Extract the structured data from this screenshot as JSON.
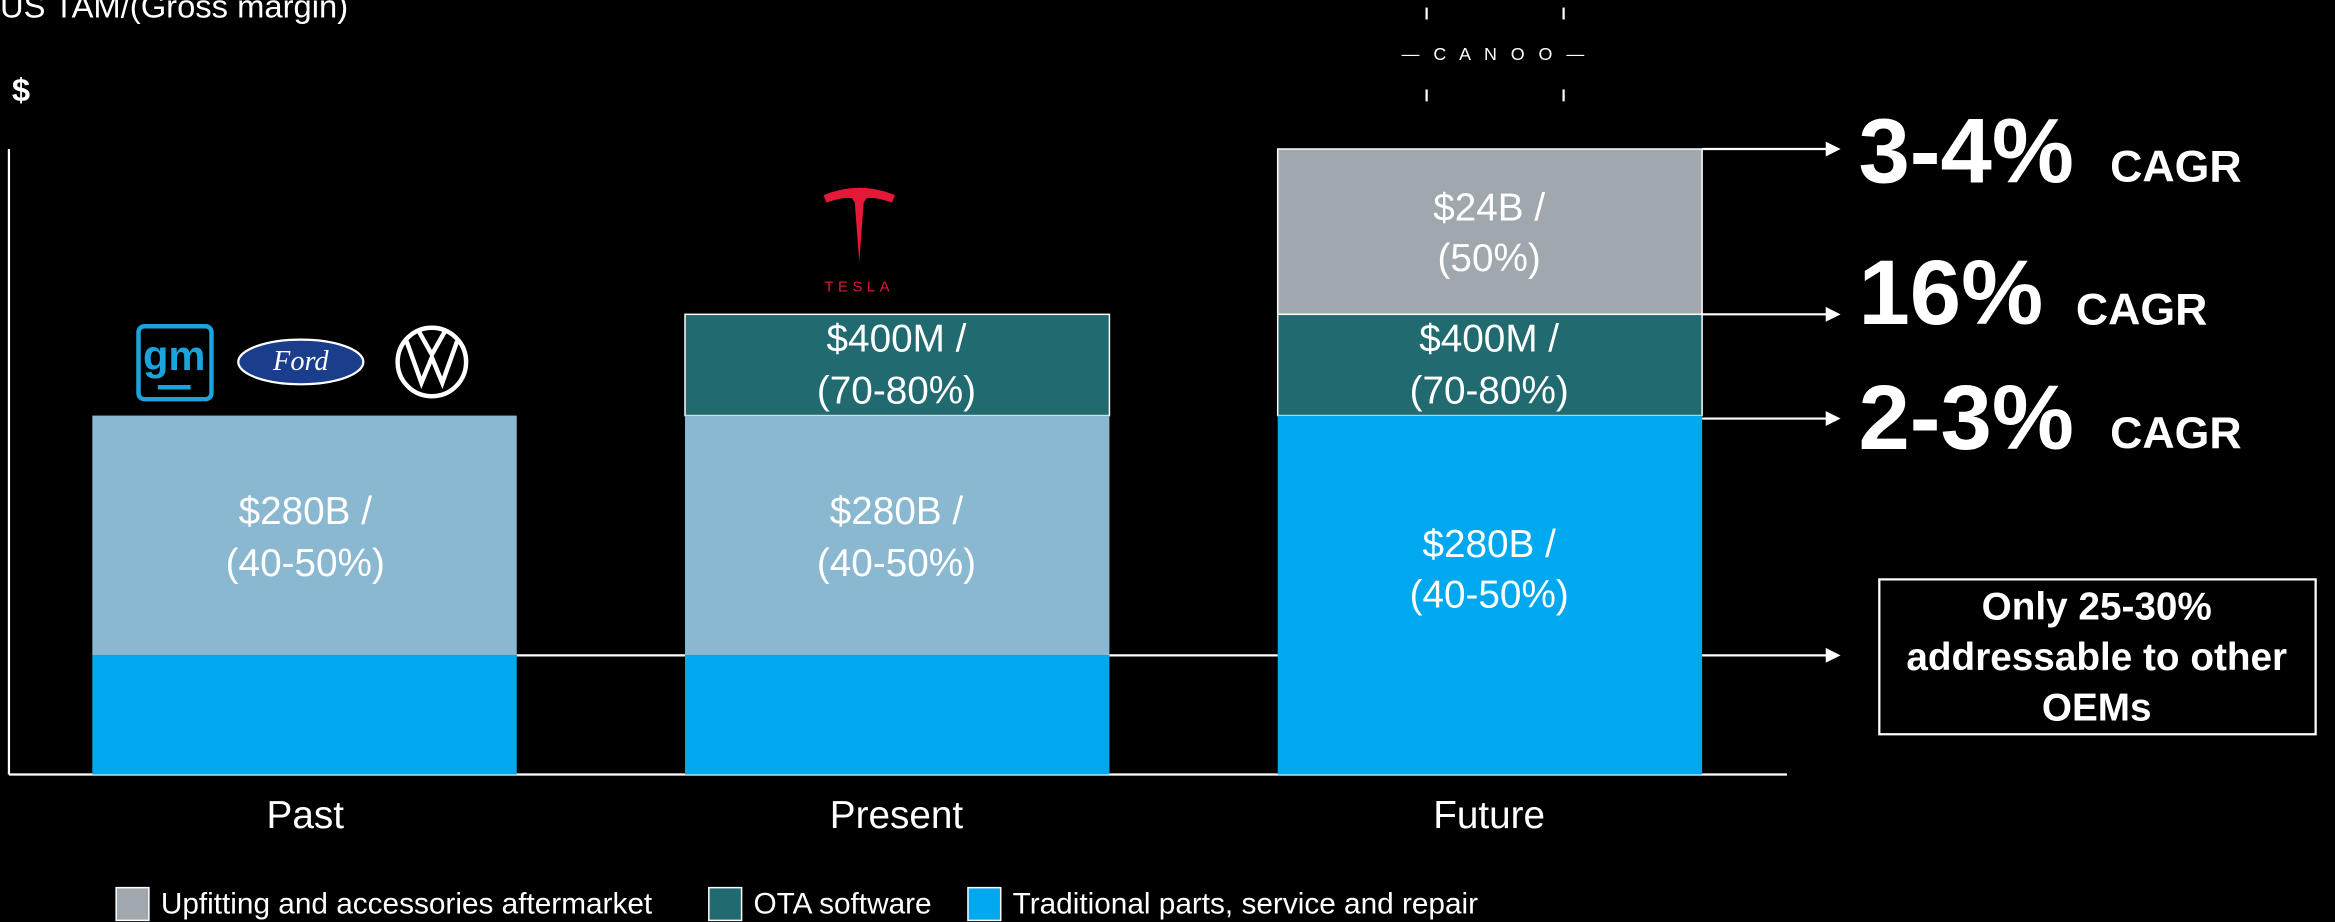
{
  "title": "US TAM/(Gross margin)",
  "unit": "$",
  "columns": [
    {
      "label": "Past",
      "segments": [
        [
          "$280B /",
          "(40-50%)"
        ]
      ]
    },
    {
      "label": "Present",
      "segments": [
        [
          "$400M /",
          "(70-80%)"
        ],
        [
          "$280B /",
          "(40-50%)"
        ]
      ]
    },
    {
      "label": "Future",
      "segments": [
        [
          "$24B /",
          "(50%)"
        ],
        [
          "$400M /",
          "(70-80%)"
        ],
        [
          "$280B /",
          "(40-50%)"
        ]
      ]
    }
  ],
  "growth": [
    {
      "rate": "3-4%",
      "suffix": "CAGR"
    },
    {
      "rate": "16%",
      "suffix": "CAGR"
    },
    {
      "rate": "2-3%",
      "suffix": "CAGR"
    }
  ],
  "note": [
    "Only 25-30%",
    "addressable to other",
    "OEMs"
  ],
  "legend": [
    "Upfitting and accessories aftermarket",
    "OTA software",
    "Traditional parts, service and repair"
  ],
  "logos": {
    "gm": "gm",
    "ford": "Ford",
    "tesla": "TESLA",
    "canoo": "— C A N O O —"
  }
}
